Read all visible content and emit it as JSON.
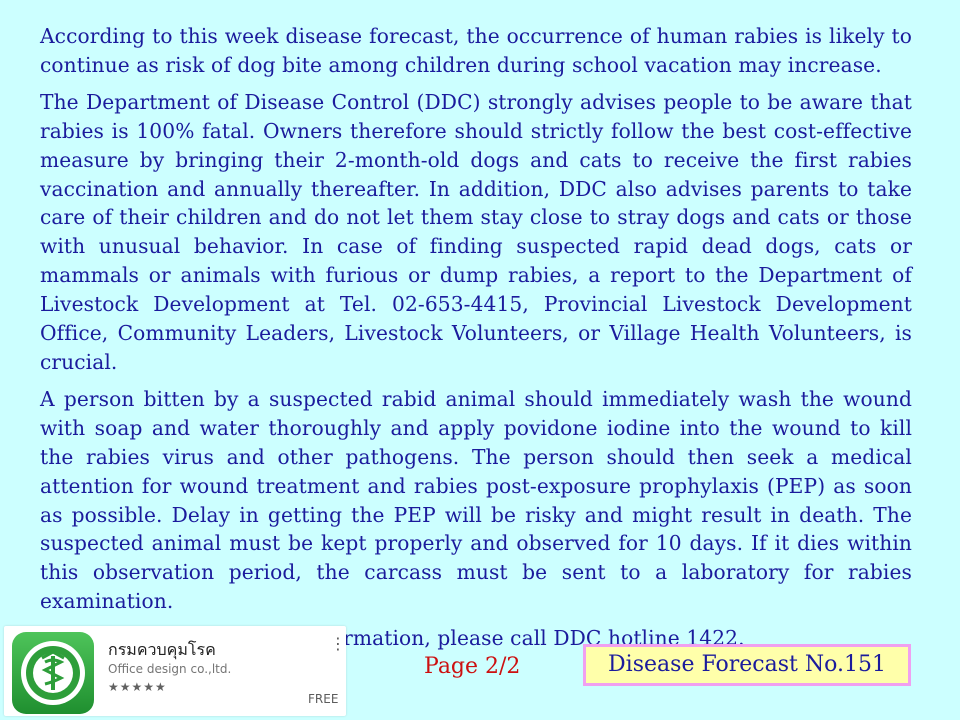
{
  "paragraphs": [
    "According to this week disease forecast, the occurrence of human rabies is likely to continue as risk of dog bite among children during school vacation may increase.",
    "The Department of Disease Control (DDC) strongly advises people to be aware that rabies is 100% fatal. Owners therefore should strictly follow the best cost-effective measure by bringing their 2-month-old dogs and cats to receive the first rabies vaccination and annually thereafter. In addition, DDC also advises parents to take care of their children and do not let them stay close to stray dogs and cats or those with unusual behavior. In case of finding suspected rapid dead dogs, cats or mammals or animals with furious or dump rabies, a report to the Department of Livestock Development at Tel. 02-653-4415, Provincial Livestock Development Office, Community Leaders, Livestock Volunteers, or Village Health Volunteers, is crucial.",
    "A person bitten by a suspected rabid animal should immediately wash the wound with soap and water thoroughly and apply povidone iodine into the wound to kill the rabies virus and other pathogens. The person should then seek a medical attention for wound treatment and rabies post-exposure prophylaxis (PEP) as soon as possible. Delay in getting the PEP will be risky and might result in death. The suspected animal must be kept properly and observed for 10 days. If it dies within this observation period, the carcass must be sent to a laboratory for rabies examination.",
    "For queries or additional information, please call DDC hotline 1422."
  ],
  "app_card": {
    "title": "กรมควบคุมโรค",
    "developer": "Office design co.,ltd.",
    "stars": "★★★★★",
    "menu": "⋮",
    "price": "FREE",
    "icon": "ddc-logo-icon",
    "icon_color": "#2e9e3a"
  },
  "footer": {
    "page": "Page 2/2",
    "forecast_label": "Disease Forecast No.151"
  },
  "colors": {
    "background": "#ccffff",
    "text": "#1b1b9c",
    "page_number": "#cc1010",
    "box_fill": "#ffffaa",
    "box_border": "#f0a0f0"
  }
}
